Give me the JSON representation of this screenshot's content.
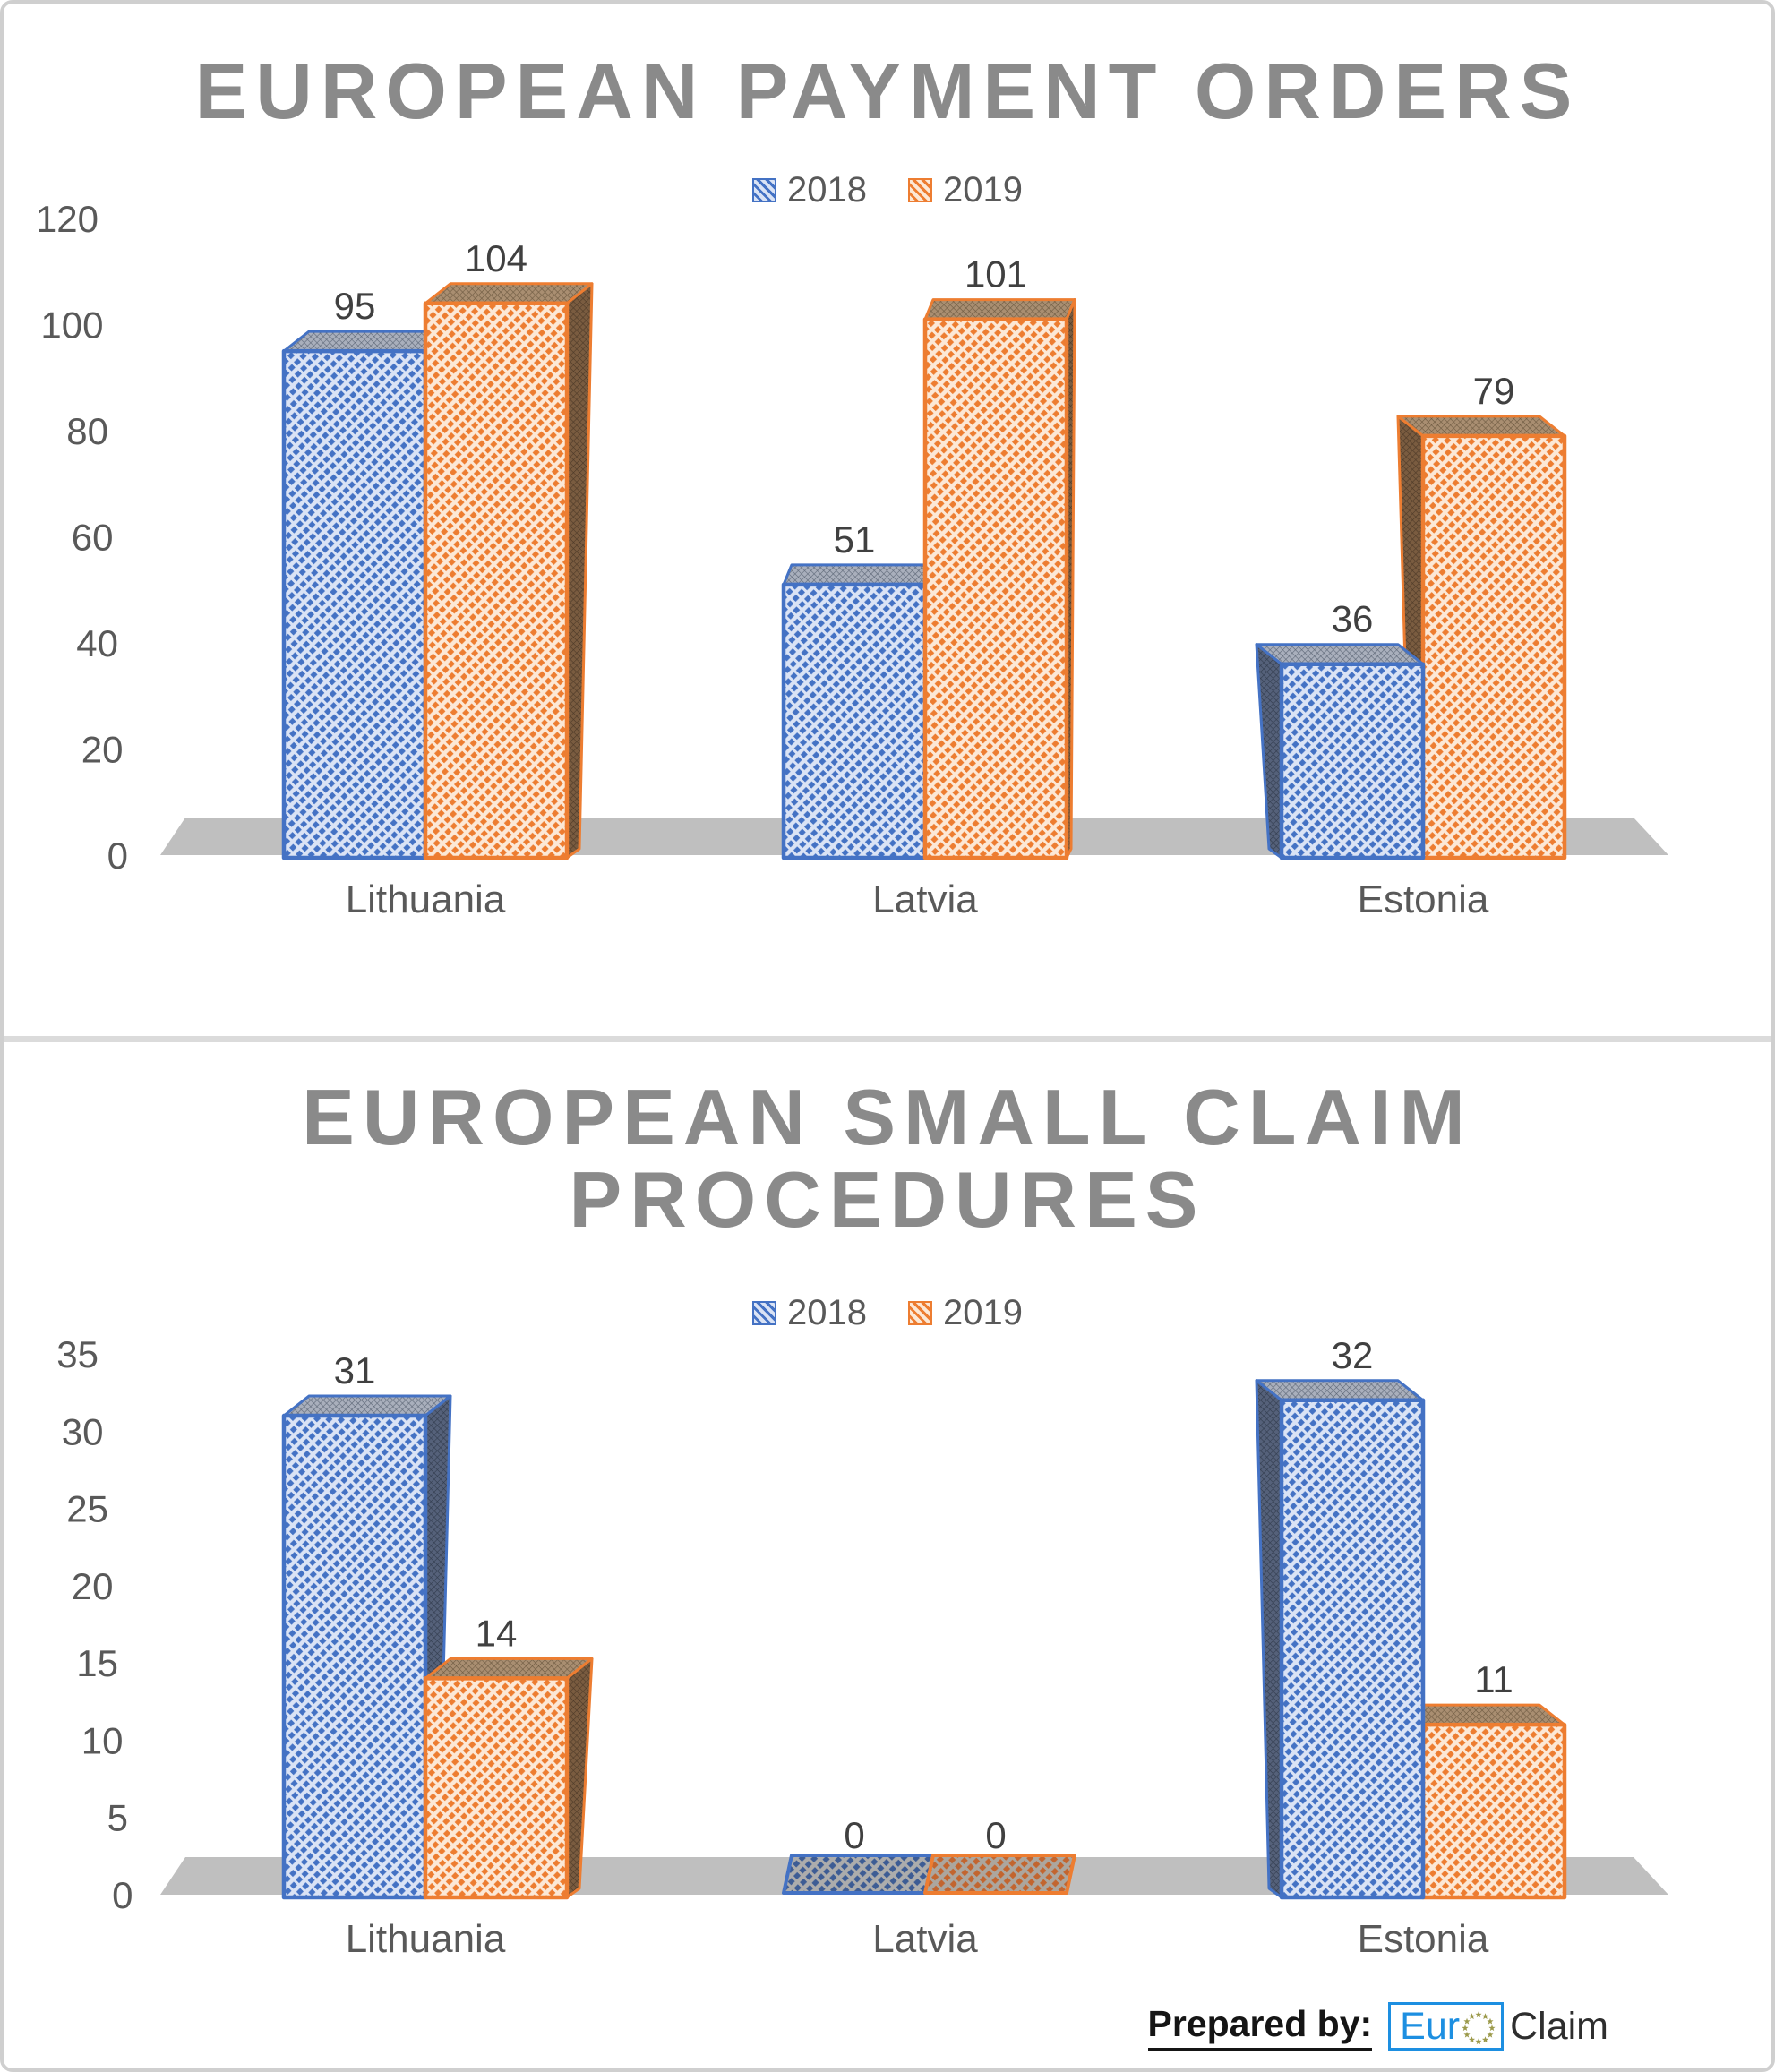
{
  "frame": {
    "background": "#FFFFFF",
    "border_color": "#CFCFCF",
    "separator_color": "#DBDBDB"
  },
  "chart_data": [
    {
      "type": "bar",
      "style": "3d-clustered-hatched",
      "title": "EUROPEAN PAYMENT ORDERS",
      "title_lines": [
        "EUROPEAN PAYMENT ORDERS"
      ],
      "categories": [
        "Lithuania",
        "Latvia",
        "Estonia"
      ],
      "series": [
        {
          "name": "2018",
          "values": [
            95,
            51,
            36
          ]
        },
        {
          "name": "2019",
          "values": [
            104,
            101,
            79
          ]
        }
      ],
      "ylim": [
        0,
        120
      ],
      "yticks": [
        120,
        100,
        80,
        60,
        40,
        20,
        0
      ],
      "xlabel": "",
      "ylabel": "",
      "grid": false,
      "legend_position": "top",
      "data_labels": true
    },
    {
      "type": "bar",
      "style": "3d-clustered-hatched",
      "title": "EUROPEAN SMALL CLAIM PROCEDURES",
      "title_lines": [
        "EUROPEAN SMALL CLAIM",
        "PROCEDURES"
      ],
      "categories": [
        "Lithuania",
        "Latvia",
        "Estonia"
      ],
      "series": [
        {
          "name": "2018",
          "values": [
            31,
            0,
            32
          ]
        },
        {
          "name": "2019",
          "values": [
            14,
            0,
            11
          ]
        }
      ],
      "ylim": [
        0,
        35
      ],
      "yticks": [
        35,
        30,
        25,
        20,
        15,
        10,
        5,
        0
      ],
      "xlabel": "",
      "ylabel": "",
      "grid": false,
      "legend_position": "top",
      "data_labels": true
    }
  ],
  "colors": {
    "title_text": "#8A8A8A",
    "axis_text": "#595959",
    "category_text": "#595959",
    "value_text": "#404040",
    "floor": "#BFBFBF",
    "series_2018": {
      "stroke": "#4472C4",
      "fill": "#DAE3F5",
      "side_bg": "#55617A",
      "side_line": "#323C4E",
      "top_bg": "#A9AFBC",
      "top_line": "#5E6878",
      "zero_bg": "#ACACAC",
      "zero_line": "#3D5C94"
    },
    "series_2019": {
      "stroke": "#ED7D31",
      "fill": "#FCE8D6",
      "side_bg": "#7A5C40",
      "side_line": "#4E3A28",
      "top_bg": "#A98E71",
      "top_line": "#6F5B42",
      "zero_bg": "#ACA69E",
      "zero_line": "#C2652F"
    }
  },
  "footer": {
    "prepared_by": "Prepared by:",
    "logo_primary": "Eur",
    "logo_secondary": "Claim",
    "logo_border_color": "#1D8FE1",
    "logo_star_color": "#9C9A4B"
  }
}
